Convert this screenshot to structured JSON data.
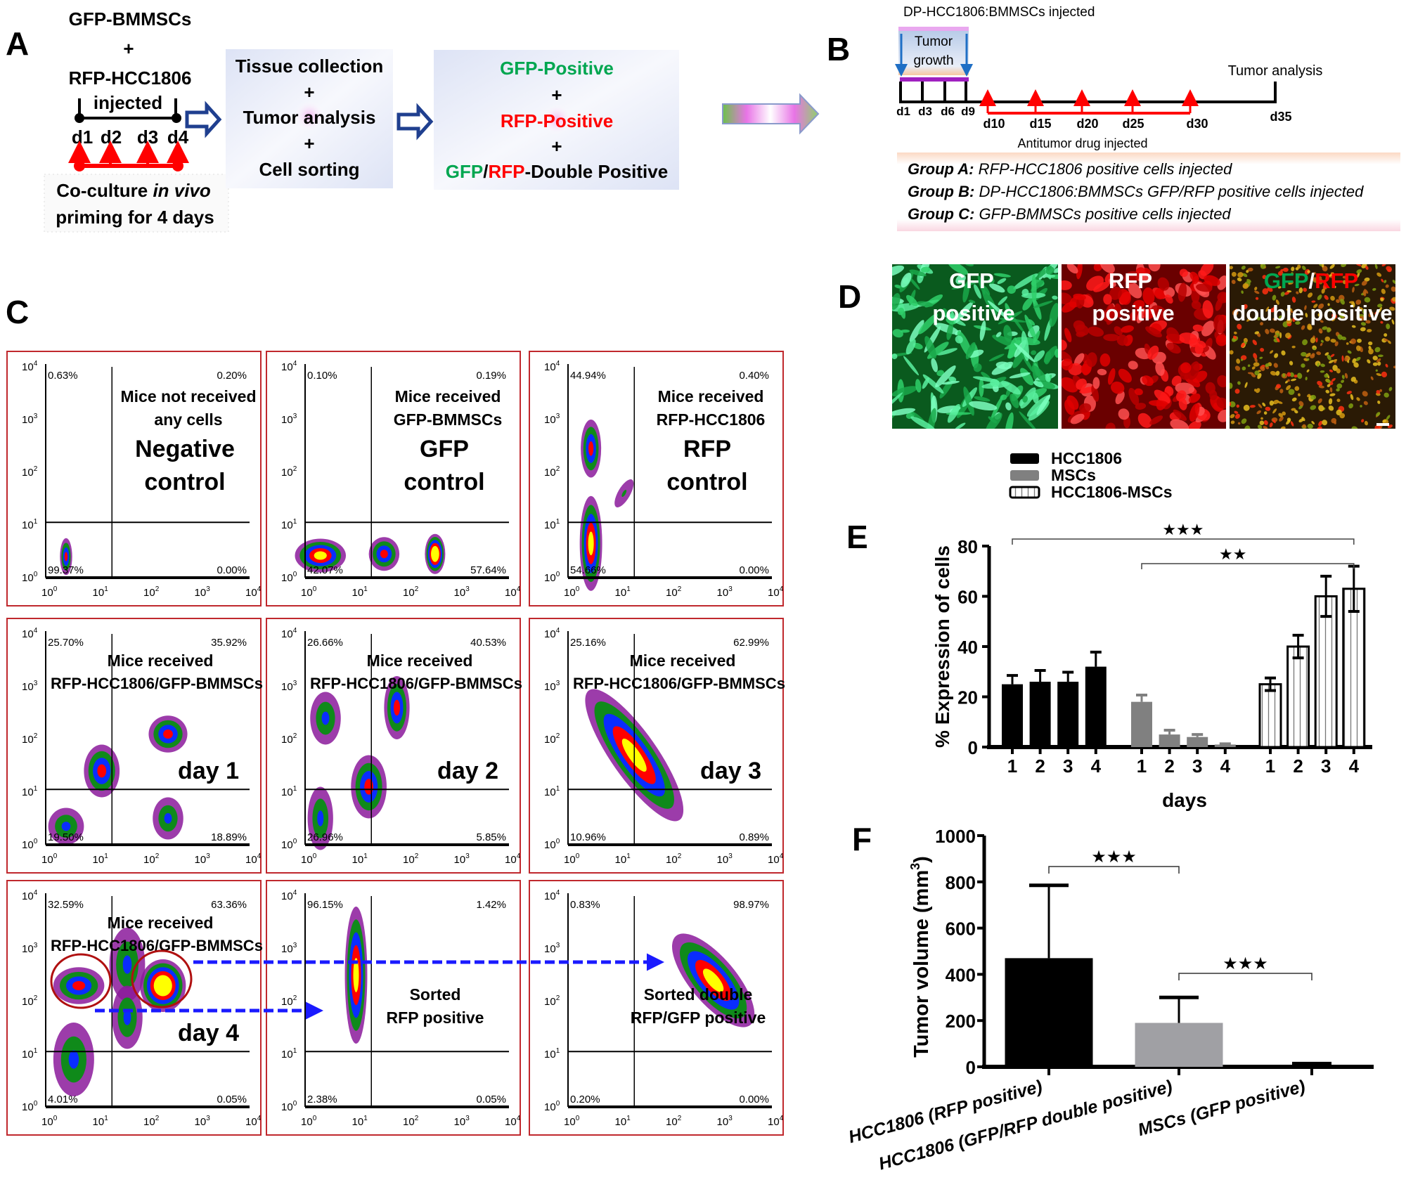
{
  "panel_labels": {
    "a": "A",
    "b": "B",
    "c": "C",
    "d": "D",
    "e": "E",
    "f": "F"
  },
  "panel_a": {
    "cells_1": "GFP-BMMSCs",
    "plus": "+",
    "cells_2": "RFP-HCC1806",
    "injected": "injected",
    "days": [
      "d1",
      "d2",
      "d3",
      "d4"
    ],
    "coculture": "Co-culture",
    "in_vivo": "in vivo",
    "priming": "priming for 4 days",
    "box1": [
      "Tissue collection",
      "+",
      "Tumor analysis",
      "+",
      "Cell sorting"
    ],
    "box2": {
      "gfp": "GFP-Positive",
      "plus": "+",
      "rfp": "RFP-Positive",
      "dp_gfp": "GFP",
      "dp_slash": "/",
      "dp_rfp": "RFP",
      "dp_rest": "-Double Positive"
    }
  },
  "panel_b": {
    "title": "DP-HCC1806:BMMSCs injected",
    "tumor_growth": [
      "Tumor",
      "growth"
    ],
    "tumor_analysis": "Tumor analysis",
    "early_days": [
      "d1",
      "d3",
      "d6",
      "d9"
    ],
    "drug_days": [
      "d10",
      "d15",
      "d20",
      "d25",
      "d30"
    ],
    "end_day": "d35",
    "drug_label": "Antitumor drug injected",
    "groups": [
      {
        "name": "Group A:",
        "desc": "RFP-HCC1806  positive cells injected"
      },
      {
        "name": "Group B:",
        "desc": "DP-HCC1806:BMMSCs GFP/RFP positive cells injected"
      },
      {
        "name": "Group C:",
        "desc": "GFP-BMMSCs positive cells injected"
      }
    ]
  },
  "panel_c": {
    "tick_base": "10",
    "tick_exponents": [
      "0",
      "1",
      "2",
      "3",
      "4"
    ],
    "plots": [
      {
        "ul": "0.63%",
        "ur": "0.20%",
        "ll": "99.37%",
        "lr": "0.00%",
        "text": [
          "Mice not received",
          "any cells"
        ],
        "big": [
          "Negative",
          "control"
        ]
      },
      {
        "ul": "0.10%",
        "ur": "0.19%",
        "ll": "42.07%",
        "lr": "57.64%",
        "text": [
          "Mice received",
          "GFP-BMMSCs"
        ],
        "big": [
          "GFP",
          "control"
        ]
      },
      {
        "ul": "44.94%",
        "ur": "0.40%",
        "ll": "54.66%",
        "lr": "0.00%",
        "text": [
          "Mice received",
          "RFP-HCC1806"
        ],
        "big": [
          "RFP",
          "control"
        ]
      },
      {
        "ul": "25.70%",
        "ur": "35.92%",
        "ll": "19.50%",
        "lr": "18.89%",
        "text": [
          "Mice received",
          "RFP-HCC1806/GFP-BMMSCs"
        ],
        "big": [
          "day 1"
        ]
      },
      {
        "ul": "26.66%",
        "ur": "40.53%",
        "ll": "26.96%",
        "lr": "5.85%",
        "text": [
          "Mice received",
          "RFP-HCC1806/GFP-BMMSCs"
        ],
        "big": [
          "day 2"
        ]
      },
      {
        "ul": "25.16%",
        "ur": "62.99%",
        "ll": "10.96%",
        "lr": "0.89%",
        "text": [
          "Mice received",
          "RFP-HCC1806/GFP-BMMSCs"
        ],
        "big": [
          "day 3"
        ]
      },
      {
        "ul": "32.59%",
        "ur": "63.36%",
        "ll": "4.01%",
        "lr": "0.05%",
        "text": [
          "Mice received",
          "RFP-HCC1806/GFP-BMMSCs"
        ],
        "big": [
          "day 4"
        ]
      },
      {
        "ul": "96.15%",
        "ur": "1.42%",
        "ll": "2.38%",
        "lr": "0.05%",
        "text": [
          "Sorted",
          "RFP positive"
        ],
        "big": []
      },
      {
        "ul": "0.83%",
        "ur": "98.97%",
        "ll": "0.20%",
        "lr": "0.00%",
        "text": [
          "Sorted double",
          "RFP/GFP positive"
        ],
        "big": []
      }
    ]
  },
  "panel_d": {
    "images": [
      {
        "line1": "GFP",
        "line2": "positive"
      },
      {
        "line1": "RFP",
        "line2": "positive"
      },
      {
        "line1_gfp": "GFP",
        "line1_slash": "/",
        "line1_rfp": "RFP",
        "line2": "double positive"
      }
    ]
  },
  "colors": {
    "gfp": "#00a650",
    "rfp": "#ff0000",
    "frame": "#c0282d",
    "arrow_blue": "#1f3f8f",
    "dashed_arrow": "#1a1aff"
  },
  "chart_data": [
    {
      "type": "bar",
      "panel": "E",
      "ylabel": "% Expression of cells",
      "xlabel": "days",
      "ylim": [
        0,
        80
      ],
      "yticks": [
        0,
        20,
        40,
        60,
        80
      ],
      "categories": [
        "1",
        "2",
        "3",
        "4"
      ],
      "legend_position": "top",
      "series": [
        {
          "name": "HCC1806",
          "values": [
            25,
            26,
            26,
            32
          ],
          "errors": [
            3.5,
            4.5,
            3.8,
            5.8
          ],
          "color": "#000000"
        },
        {
          "name": "MSCs",
          "values": [
            18,
            5,
            4,
            1
          ],
          "errors": [
            2.7,
            1.7,
            1.0,
            0.3
          ],
          "color": "#808080"
        },
        {
          "name": "HCC1806-MSCs",
          "values": [
            25,
            40,
            60,
            63
          ],
          "errors": [
            2.5,
            4.5,
            8,
            9
          ],
          "color": "striped"
        }
      ],
      "significance": [
        {
          "from": "HCC1806 day 1",
          "to": "HCC1806-MSCs day 4",
          "label": "★★★"
        },
        {
          "from": "MSCs day 1",
          "to": "HCC1806-MSCs day 4",
          "label": "★★"
        }
      ]
    },
    {
      "type": "bar",
      "panel": "F",
      "ylabel": "Tumor volume (mm",
      "ylabel_sup": "3",
      "ylabel_end": ")",
      "ylim": [
        0,
        1000
      ],
      "yticks": [
        0,
        200,
        400,
        600,
        800,
        1000
      ],
      "categories": [
        "HCC1806 (RFP positive)",
        "HCC1806 (GFP/RFP double positive)",
        "MSCs (GFP positive)"
      ],
      "values": [
        470,
        190,
        8
      ],
      "errors": [
        315,
        110,
        6
      ],
      "colors": [
        "#000000",
        "#a0a0a4",
        "#000000"
      ],
      "significance": [
        {
          "from": 0,
          "to": 1,
          "label": "★★★"
        },
        {
          "from": 1,
          "to": 2,
          "label": "★★★"
        }
      ]
    }
  ]
}
